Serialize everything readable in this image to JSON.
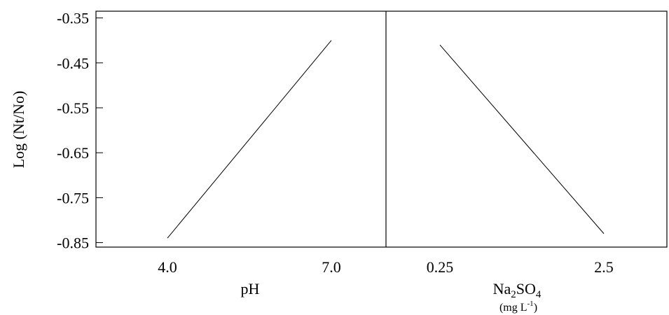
{
  "chart_data": {
    "type": "line",
    "ylabel": "Log (Nt/No)",
    "ylim": [
      -0.86,
      -0.335
    ],
    "yticks": [
      "-0.35",
      "-0.45",
      "-0.55",
      "-0.65",
      "-0.75",
      "-0.85"
    ],
    "panels": [
      {
        "xlabel": "pH",
        "x_unit": "",
        "categories": [
          "4.0",
          "7.0"
        ],
        "series": [
          {
            "values": [
              -0.84,
              -0.4
            ]
          }
        ]
      },
      {
        "xlabel": "Na2SO4",
        "x_unit": "(mg L-1)",
        "categories": [
          "0.25",
          "2.5"
        ],
        "series": [
          {
            "values": [
              -0.41,
              -0.83
            ]
          }
        ]
      }
    ]
  }
}
